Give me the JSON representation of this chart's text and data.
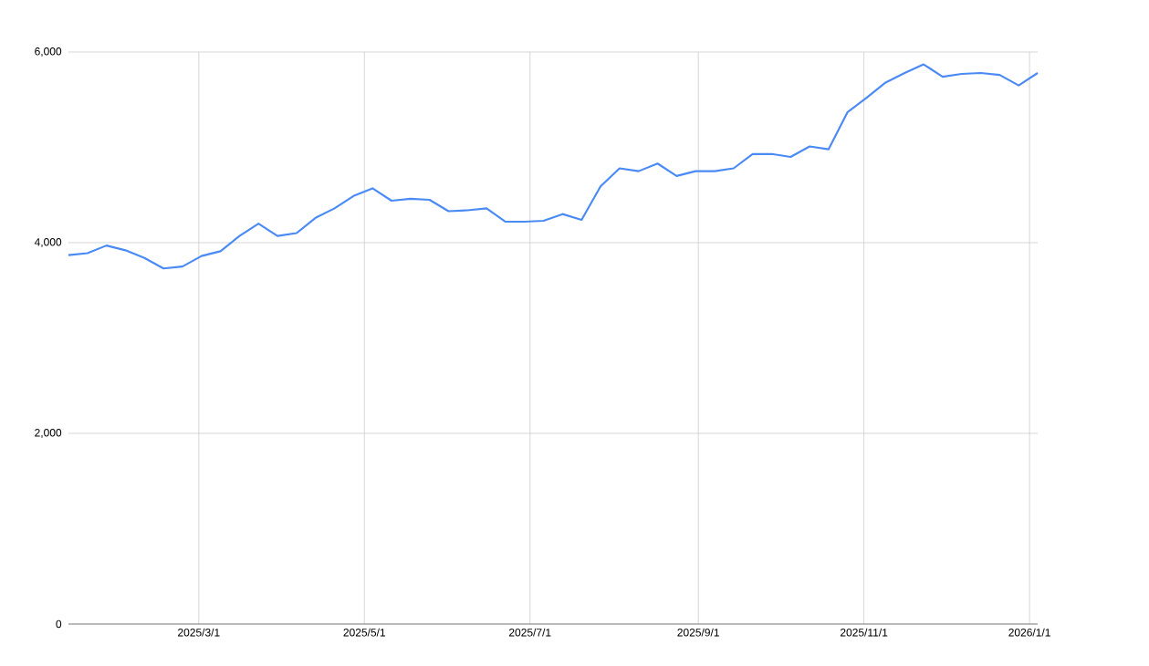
{
  "chart_data": {
    "type": "line",
    "color": "#4a8af4",
    "x": [
      "2025-01-12",
      "2025-01-19",
      "2025-01-26",
      "2025-02-02",
      "2025-02-09",
      "2025-02-16",
      "2025-02-23",
      "2025-03-02",
      "2025-03-09",
      "2025-03-16",
      "2025-03-23",
      "2025-03-30",
      "2025-04-06",
      "2025-04-13",
      "2025-04-20",
      "2025-04-27",
      "2025-05-04",
      "2025-05-11",
      "2025-05-18",
      "2025-05-25",
      "2025-06-01",
      "2025-06-08",
      "2025-06-15",
      "2025-06-22",
      "2025-06-29",
      "2025-07-06",
      "2025-07-13",
      "2025-07-20",
      "2025-07-27",
      "2025-08-03",
      "2025-08-10",
      "2025-08-17",
      "2025-08-24",
      "2025-08-31",
      "2025-09-07",
      "2025-09-14",
      "2025-09-21",
      "2025-09-28",
      "2025-10-05",
      "2025-10-12",
      "2025-10-19",
      "2025-10-26",
      "2025-11-02",
      "2025-11-09",
      "2025-11-16",
      "2025-11-23",
      "2025-11-30",
      "2025-12-07",
      "2025-12-14",
      "2025-12-21",
      "2025-12-28",
      "2026-01-04"
    ],
    "values": [
      3870,
      3890,
      3970,
      3920,
      3840,
      3730,
      3750,
      3860,
      3910,
      4070,
      4200,
      4070,
      4100,
      4260,
      4360,
      4490,
      4570,
      4440,
      4460,
      4450,
      4330,
      4340,
      4360,
      4220,
      4220,
      4230,
      4300,
      4240,
      4590,
      4780,
      4750,
      4830,
      4700,
      4750,
      4750,
      4780,
      4930,
      4930,
      4900,
      5010,
      4980,
      5370,
      5520,
      5680,
      5780,
      5870,
      5740,
      5770,
      5780,
      5760,
      5650,
      5780
    ],
    "xlim": [
      "2025-01-12",
      "2026-01-04"
    ],
    "xticks": [
      {
        "value": "2025-03-01",
        "label": "2025/3/1"
      },
      {
        "value": "2025-05-01",
        "label": "2025/5/1"
      },
      {
        "value": "2025-07-01",
        "label": "2025/7/1"
      },
      {
        "value": "2025-09-01",
        "label": "2025/9/1"
      },
      {
        "value": "2025-11-01",
        "label": "2025/11/1"
      },
      {
        "value": "2026-01-01",
        "label": "2026/1/1"
      }
    ],
    "ylim": [
      0,
      6000
    ],
    "yticks": [
      {
        "value": 0,
        "label": "0"
      },
      {
        "value": 2000,
        "label": "2,000"
      },
      {
        "value": 4000,
        "label": "4,000"
      },
      {
        "value": 6000,
        "label": "6,000"
      }
    ],
    "grid": true,
    "marker": "none",
    "line_style": "solid"
  }
}
